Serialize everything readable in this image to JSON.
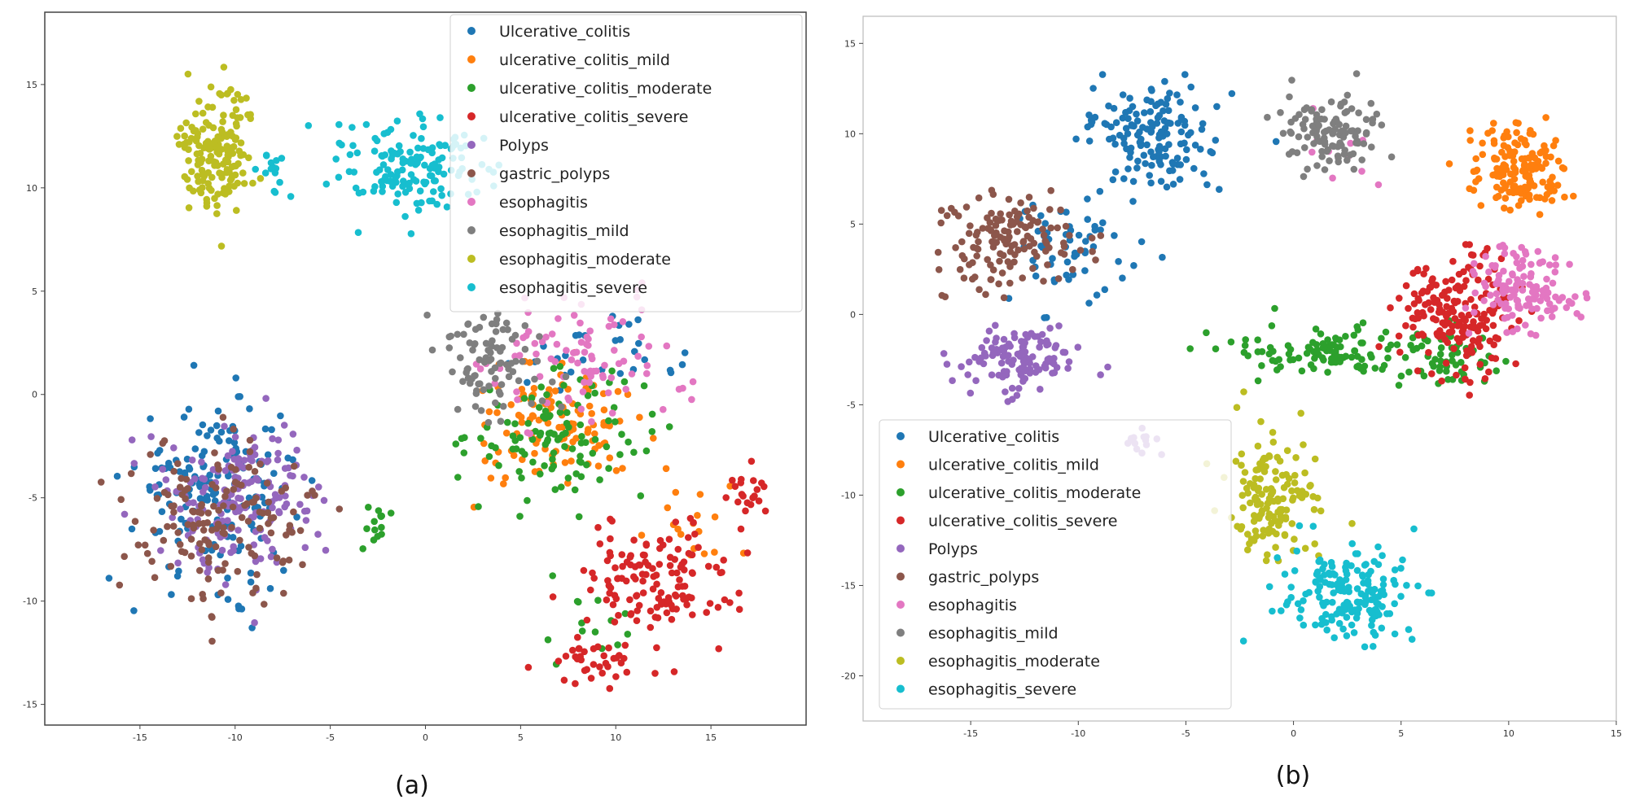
{
  "colors": {
    "Ulcerative_colitis": "#1f77b4",
    "ulcerative_colitis_mild": "#ff7f0e",
    "ulcerative_colitis_moderate": "#2ca02c",
    "ulcerative_colitis_severe": "#d62728",
    "Polyps": "#9467bd",
    "gastric_polyps": "#8c564b",
    "esophagitis": "#e377c2",
    "esophagitis_mild": "#7f7f7f",
    "esophagitis_moderate": "#bcbd22",
    "esophagitis_severe": "#17becf"
  },
  "chart_data": [
    {
      "type": "scatter",
      "panel_label": "(a)",
      "title": "",
      "xlabel": "",
      "ylabel": "",
      "xlim": [
        -20,
        20
      ],
      "ylim": [
        -16,
        18.5
      ],
      "xticks": [
        -15,
        -10,
        -5,
        0,
        5,
        10,
        15
      ],
      "yticks": [
        -15,
        -10,
        -5,
        0,
        5,
        10,
        15
      ],
      "grid": false,
      "legend_position": "top-right",
      "legend": [
        "Ulcerative_colitis",
        "ulcerative_colitis_mild",
        "ulcerative_colitis_moderate",
        "ulcerative_colitis_severe",
        "Polyps",
        "gastric_polyps",
        "esophagitis",
        "esophagitis_mild",
        "esophagitis_moderate",
        "esophagitis_severe"
      ],
      "series": [
        {
          "name": "Ulcerative_colitis",
          "clusters": [
            {
              "cx": -11,
              "cy": -4.5,
              "sx": 3.6,
              "sy": 3.6,
              "n": 170
            },
            {
              "cx": 9,
              "cy": 1.5,
              "sx": 3.5,
              "sy": 1.5,
              "n": 30
            }
          ]
        },
        {
          "name": "ulcerative_colitis_mild",
          "clusters": [
            {
              "cx": 7,
              "cy": -1.5,
              "sx": 3.8,
              "sy": 2.3,
              "n": 120
            },
            {
              "cx": 14,
              "cy": -6,
              "sx": 3,
              "sy": 2,
              "n": 18
            }
          ]
        },
        {
          "name": "ulcerative_colitis_moderate",
          "clusters": [
            {
              "cx": 7,
              "cy": -2,
              "sx": 3.8,
              "sy": 2.5,
              "n": 110
            },
            {
              "cx": -2.5,
              "cy": -6.5,
              "sx": 0.8,
              "sy": 1,
              "n": 14
            },
            {
              "cx": 9,
              "cy": -11,
              "sx": 2,
              "sy": 2,
              "n": 14
            }
          ]
        },
        {
          "name": "ulcerative_colitis_severe",
          "clusters": [
            {
              "cx": 12,
              "cy": -9,
              "sx": 3.5,
              "sy": 2.5,
              "n": 140
            },
            {
              "cx": 8.5,
              "cy": -13,
              "sx": 2,
              "sy": 1,
              "n": 35
            },
            {
              "cx": 17,
              "cy": -4.5,
              "sx": 1,
              "sy": 1.3,
              "n": 20
            }
          ]
        },
        {
          "name": "Polyps",
          "clusters": [
            {
              "cx": -9.5,
              "cy": -5,
              "sx": 3.3,
              "sy": 3,
              "n": 170
            }
          ]
        },
        {
          "name": "gastric_polyps",
          "clusters": [
            {
              "cx": -10.5,
              "cy": -6,
              "sx": 4,
              "sy": 3.3,
              "n": 150
            }
          ]
        },
        {
          "name": "esophagitis",
          "clusters": [
            {
              "cx": 8.5,
              "cy": 1.5,
              "sx": 4.5,
              "sy": 2.5,
              "n": 90
            }
          ]
        },
        {
          "name": "esophagitis_mild",
          "clusters": [
            {
              "cx": 3.5,
              "cy": 1.5,
              "sx": 2.5,
              "sy": 2.3,
              "n": 90
            }
          ]
        },
        {
          "name": "esophagitis_moderate",
          "clusters": [
            {
              "cx": -11,
              "cy": 12,
              "sx": 1.7,
              "sy": 2.5,
              "n": 170
            }
          ]
        },
        {
          "name": "esophagitis_severe",
          "clusters": [
            {
              "cx": -0.5,
              "cy": 11,
              "sx": 3.5,
              "sy": 2,
              "n": 150
            },
            {
              "cx": -8,
              "cy": 11,
              "sx": 1,
              "sy": 1,
              "n": 14
            }
          ]
        }
      ]
    },
    {
      "type": "scatter",
      "panel_label": "(b)",
      "title": "",
      "xlabel": "",
      "ylabel": "",
      "xlim": [
        -20,
        15
      ],
      "ylim": [
        -22.5,
        16.5
      ],
      "xticks": [
        -15,
        -10,
        -5,
        0,
        5,
        10,
        15
      ],
      "yticks": [
        -20,
        -15,
        -10,
        -5,
        0,
        5,
        10,
        15
      ],
      "grid": false,
      "legend_position": "bottom-left",
      "legend": [
        "Ulcerative_colitis",
        "ulcerative_colitis_mild",
        "ulcerative_colitis_moderate",
        "ulcerative_colitis_severe",
        "Polyps",
        "gastric_polyps",
        "esophagitis",
        "esophagitis_mild",
        "esophagitis_moderate",
        "esophagitis_severe"
      ],
      "series": [
        {
          "name": "Ulcerative_colitis",
          "clusters": [
            {
              "cx": -6.5,
              "cy": 10,
              "sx": 2.5,
              "sy": 2.5,
              "n": 150
            },
            {
              "cx": -10.5,
              "cy": 4,
              "sx": 2.5,
              "sy": 3,
              "n": 60
            }
          ]
        },
        {
          "name": "ulcerative_colitis_mild",
          "clusters": [
            {
              "cx": 10.5,
              "cy": 8,
              "sx": 1.8,
              "sy": 2,
              "n": 150
            }
          ]
        },
        {
          "name": "ulcerative_colitis_moderate",
          "clusters": [
            {
              "cx": 1.5,
              "cy": -2,
              "sx": 3,
              "sy": 1.3,
              "n": 110
            },
            {
              "cx": 7,
              "cy": -2.5,
              "sx": 2,
              "sy": 1.5,
              "n": 50
            }
          ]
        },
        {
          "name": "ulcerative_colitis_severe",
          "clusters": [
            {
              "cx": 7.5,
              "cy": 0,
              "sx": 2.2,
              "sy": 2.8,
              "n": 180
            }
          ]
        },
        {
          "name": "Polyps",
          "clusters": [
            {
              "cx": -13,
              "cy": -2.5,
              "sx": 2.7,
              "sy": 1.5,
              "n": 120
            },
            {
              "cx": -7,
              "cy": -7,
              "sx": 1,
              "sy": 1,
              "n": 14
            }
          ]
        },
        {
          "name": "gastric_polyps",
          "clusters": [
            {
              "cx": -13,
              "cy": 4,
              "sx": 3,
              "sy": 2.5,
              "n": 140
            }
          ]
        },
        {
          "name": "esophagitis",
          "clusters": [
            {
              "cx": 10.5,
              "cy": 1.5,
              "sx": 2,
              "sy": 2,
              "n": 130
            },
            {
              "cx": 2,
              "cy": 9,
              "sx": 1.5,
              "sy": 2,
              "n": 10
            }
          ]
        },
        {
          "name": "esophagitis_mild",
          "clusters": [
            {
              "cx": 1.5,
              "cy": 10,
              "sx": 1.8,
              "sy": 2,
              "n": 110
            }
          ]
        },
        {
          "name": "esophagitis_moderate",
          "clusters": [
            {
              "cx": -1,
              "cy": -10,
              "sx": 2,
              "sy": 2.8,
              "n": 140
            }
          ]
        },
        {
          "name": "esophagitis_severe",
          "clusters": [
            {
              "cx": 2.5,
              "cy": -15.5,
              "sx": 2.5,
              "sy": 2,
              "n": 170
            }
          ]
        }
      ]
    }
  ]
}
